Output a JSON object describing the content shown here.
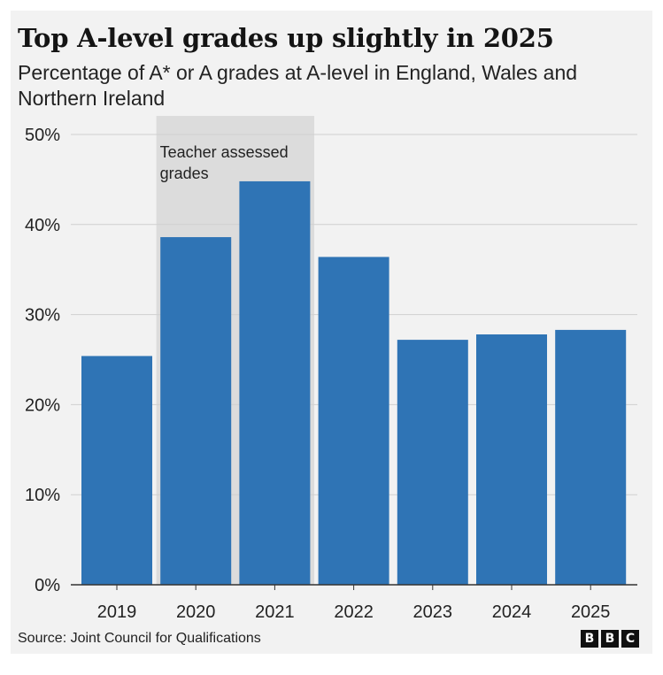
{
  "title": "Top A-level grades up slightly in 2025",
  "subtitle": "Percentage of A* or A grades at A-level in England, Wales and Northern Ireland",
  "source": "Source: Joint Council for Qualifications",
  "logo_letters": [
    "B",
    "B",
    "C"
  ],
  "colors": {
    "bar": "#2f74b5",
    "highlight": "#dcdcdc",
    "grid": "#d0d0d0",
    "axis": "#333333",
    "text": "#222222",
    "background": "#f2f2f2"
  },
  "chart_data": {
    "type": "bar",
    "title": "Top A-level grades up slightly in 2025",
    "xlabel": "",
    "ylabel": "",
    "categories": [
      "2019",
      "2020",
      "2021",
      "2022",
      "2023",
      "2024",
      "2025"
    ],
    "values": [
      25.4,
      38.6,
      44.8,
      36.4,
      27.2,
      27.8,
      28.3
    ],
    "ylim": [
      0,
      50
    ],
    "yticks": [
      0,
      10,
      20,
      30,
      40,
      50
    ],
    "ytick_labels": [
      "0%",
      "10%",
      "20%",
      "30%",
      "40%",
      "50%"
    ],
    "grid": true,
    "annotation": {
      "text_lines": [
        "Teacher assessed",
        "grades"
      ],
      "span_categories": [
        "2020",
        "2021"
      ]
    }
  }
}
